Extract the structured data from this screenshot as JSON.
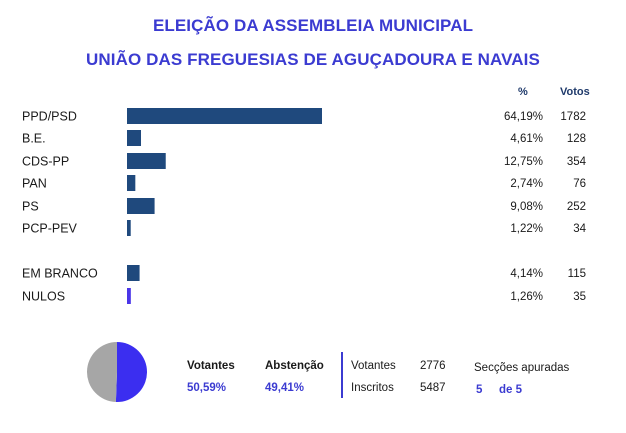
{
  "header": {
    "title": "ELEIÇÃO DA ASSEMBLEIA MUNICIPAL",
    "subtitle": "UNIÃO DAS FREGUESIAS DE AGUÇADOURA E NAVAIS"
  },
  "columns": {
    "pct": "%",
    "votes": "Votos"
  },
  "chart_data": {
    "type": "bar",
    "orientation": "horizontal",
    "title": "ELEIÇÃO DA ASSEMBLEIA MUNICIPAL",
    "subtitle": "UNIÃO DAS FREGUESIAS DE AGUÇADOURA E NAVAIS",
    "categories": [
      "PPD/PSD",
      "B.E.",
      "CDS-PP",
      "PAN",
      "PS",
      "PCP-PEV",
      "EM BRANCO",
      "NULOS"
    ],
    "values": [
      64.19,
      4.61,
      12.75,
      2.74,
      9.08,
      1.22,
      4.14,
      1.26
    ],
    "pct_labels": [
      "64,19%",
      "4,61%",
      "12,75%",
      "2,74%",
      "9,08%",
      "1,22%",
      "4,14%",
      "1,26%"
    ],
    "votes": [
      "1782",
      "128",
      "354",
      "76",
      "252",
      "34",
      "115",
      "35"
    ],
    "colors": [
      "#1f497d",
      "#1f497d",
      "#1f497d",
      "#1f497d",
      "#1f497d",
      "#1f497d",
      "#1f497d",
      "#4a35e8"
    ],
    "xlim": [
      0,
      64.19
    ],
    "grid": false
  },
  "summary": {
    "pie": {
      "type": "pie",
      "values": [
        50.59,
        49.41
      ],
      "colors": [
        "#3b2ef0",
        "#a6a6a6"
      ]
    },
    "votantes_label": "Votantes",
    "votantes_pct": "50,59%",
    "abstencao_label": "Abstenção",
    "abstencao_pct": "49,41%",
    "votantes_count_label": "Votantes",
    "votantes_count": "2776",
    "inscritos_label": "Inscritos",
    "inscritos_count": "5487",
    "seccoes_label": "Secções apuradas",
    "seccoes_done": "5",
    "seccoes_total": "de 5"
  }
}
